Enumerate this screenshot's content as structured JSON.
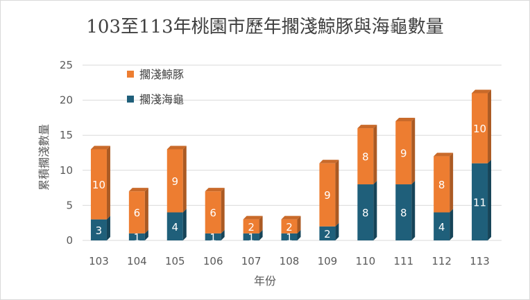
{
  "chart_data": {
    "type": "bar",
    "stacked": true,
    "title": "103至113年桃園市歷年擱淺鯨豚與海龜數量",
    "xlabel": "年份",
    "ylabel": "累積擱淺數量",
    "ylim": [
      0,
      25
    ],
    "yticks": [
      0,
      5,
      10,
      15,
      20,
      25
    ],
    "grid": true,
    "legend_position": "top-left",
    "categories": [
      "103",
      "104",
      "105",
      "106",
      "107",
      "108",
      "109",
      "110",
      "111",
      "112",
      "113"
    ],
    "series": [
      {
        "name": "擱淺海龜",
        "color": "#1f5f7a",
        "values": [
          3,
          1,
          4,
          1,
          1,
          1,
          2,
          8,
          8,
          4,
          11
        ]
      },
      {
        "name": "擱淺鯨豚",
        "color": "#ed7d31",
        "values": [
          10,
          6,
          9,
          6,
          2,
          2,
          9,
          8,
          9,
          8,
          10
        ]
      }
    ],
    "legend_order": [
      1,
      0
    ]
  }
}
